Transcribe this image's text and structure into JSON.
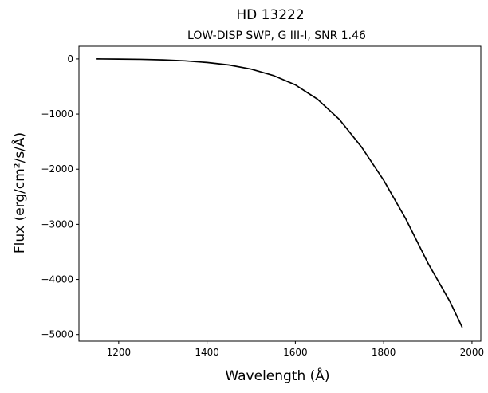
{
  "chart_data": {
    "type": "line",
    "title": "HD  13222",
    "subtitle": "LOW-DISP SWP, G III-I, SNR 1.46",
    "xlabel": "Wavelength (Å)",
    "ylabel": "Flux (erg/cm²/s/Å)",
    "xlim": [
      1110,
      2020
    ],
    "ylim": [
      -5120,
      230
    ],
    "x_ticks": [
      1200,
      1400,
      1600,
      1800,
      2000
    ],
    "y_ticks": [
      0,
      -1000,
      -2000,
      -3000,
      -4000,
      -5000
    ],
    "x_tick_labels": [
      "1200",
      "1400",
      "1600",
      "1800",
      "2000"
    ],
    "y_tick_labels": [
      "0",
      "−1000",
      "−2000",
      "−3000",
      "−4000",
      "−5000"
    ],
    "grid": false,
    "line_color": "#000000",
    "series": [
      {
        "x": [
          1150,
          1200,
          1250,
          1300,
          1350,
          1400,
          1450,
          1500,
          1550,
          1600,
          1650,
          1700,
          1750,
          1800,
          1850,
          1900,
          1950,
          1978
        ],
        "values": [
          0,
          -3,
          -8,
          -18,
          -35,
          -65,
          -110,
          -185,
          -300,
          -470,
          -730,
          -1100,
          -1600,
          -2200,
          -2900,
          -3700,
          -4400,
          -4870
        ]
      }
    ]
  }
}
